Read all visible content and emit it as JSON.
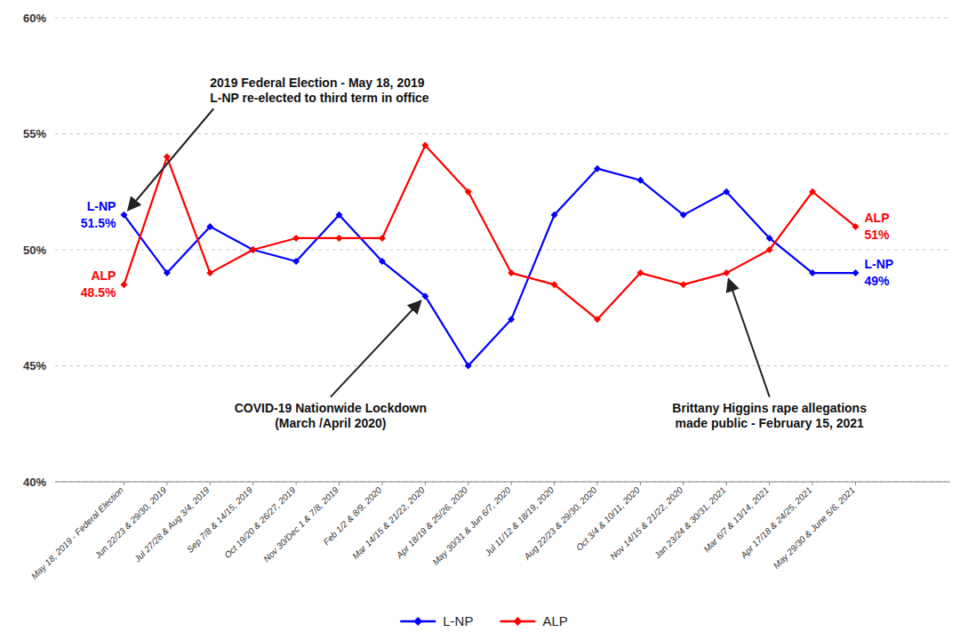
{
  "chart_data": {
    "type": "line",
    "categories": [
      "May 18, 2019 - Federal Election",
      "Jun 22/23 & 29/30, 2019",
      "Jul 27/28 & Aug 3/4, 2019",
      "Sep 7/8 & 14/15, 2019",
      "Oct 19/20 & 26/27, 2019",
      "Nov 30/Dec 1 & 7/8, 2019",
      "Feb 1/2 & 8/9, 2020",
      "Mar 14/15 & 21/22, 2020",
      "Apr 18/19 & 25/26, 2020",
      "May 30/31 & Jun 6/7, 2020",
      "Jul 11/12 & 18/19, 2020",
      "Aug 22/23 & 29/30, 2020",
      "Oct 3/4 & 10/11, 2020",
      "Nov 14/15 & 21/22, 2020",
      "Jan 23/24 & 30/31, 2021",
      "Mar 6/7 & 13/14, 2021",
      "Apr 17/18 & 24/25, 2021",
      "May 29/30 & June 5/6, 2021"
    ],
    "series": [
      {
        "name": "L-NP",
        "color": "#0000FF",
        "marker": "diamond",
        "values": [
          51.5,
          49.0,
          51.0,
          50.0,
          49.5,
          51.5,
          49.5,
          48.0,
          45.0,
          47.0,
          51.5,
          53.5,
          53.0,
          51.5,
          52.5,
          50.5,
          49.0,
          49.0
        ],
        "value_labels": [
          "51.5%",
          null,
          null,
          null,
          null,
          null,
          null,
          null,
          null,
          null,
          null,
          null,
          null,
          null,
          null,
          null,
          null,
          "49%"
        ]
      },
      {
        "name": "ALP",
        "color": "#FF0000",
        "marker": "diamond",
        "values": [
          48.5,
          54.0,
          49.0,
          50.0,
          50.5,
          50.5,
          50.5,
          54.5,
          52.5,
          49.0,
          48.5,
          47.0,
          49.0,
          48.5,
          49.0,
          50.0,
          52.5,
          51.0
        ],
        "value_labels": [
          "48.5%",
          null,
          null,
          null,
          null,
          null,
          null,
          null,
          null,
          null,
          null,
          null,
          null,
          null,
          null,
          null,
          null,
          "51%"
        ]
      }
    ],
    "ylim": [
      40,
      60
    ],
    "yticks": [
      {
        "value": 40,
        "label": "40%"
      },
      {
        "value": 45,
        "label": "45%"
      },
      {
        "value": 50,
        "label": "50%"
      },
      {
        "value": 55,
        "label": "55%"
      },
      {
        "value": 60,
        "label": "60%"
      }
    ],
    "grid": true,
    "legend": "bottom",
    "annotations": [
      {
        "text": "2019 Federal Election - May 18, 2019\nL-NP re-elected to third term in office",
        "category": "May 18, 2019 - Federal Election",
        "series": "L-NP"
      },
      {
        "text": "COVID-19 Nationwide Lockdown\n(March /April 2020)",
        "category": "Mar 14/15 & 21/22, 2020",
        "series": "L-NP"
      },
      {
        "text": "Brittany Higgins rape allegations\nmade public - February 15, 2021",
        "category": "Jan 23/24 & 30/31, 2021",
        "series": "ALP"
      }
    ]
  }
}
